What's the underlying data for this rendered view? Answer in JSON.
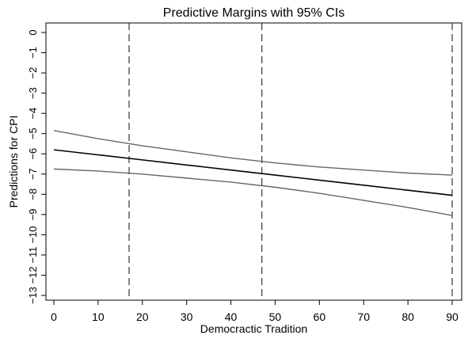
{
  "chart_data": {
    "type": "line",
    "title": "Predictive Margins with 95% CIs",
    "xlabel": "Democractic Tradition",
    "ylabel": "Predictions for CPI",
    "xlim": [
      0,
      90
    ],
    "ylim": [
      -13,
      0
    ],
    "x_ticks": [
      0,
      10,
      20,
      30,
      40,
      50,
      60,
      70,
      80,
      90
    ],
    "y_ticks": [
      0,
      -1,
      -2,
      -3,
      -4,
      -5,
      -6,
      -7,
      -8,
      -9,
      -10,
      -11,
      -12,
      -13
    ],
    "x_tick_labels": [
      "0",
      "10",
      "20",
      "30",
      "40",
      "50",
      "60",
      "70",
      "80",
      "90"
    ],
    "y_tick_labels": [
      "0",
      "−1",
      "−2",
      "−3",
      "−4",
      "−5",
      "−6",
      "−7",
      "−8",
      "−9",
      "−10",
      "−11",
      "−12",
      "−13"
    ],
    "grid": false,
    "reference_lines_x": [
      17,
      47,
      90
    ],
    "series": [
      {
        "role": "upper_ci",
        "color": "#666666",
        "x": [
          0,
          10,
          20,
          30,
          40,
          50,
          60,
          70,
          80,
          90
        ],
        "y": [
          -4.85,
          -5.25,
          -5.6,
          -5.9,
          -6.2,
          -6.45,
          -6.65,
          -6.8,
          -6.95,
          -7.05
        ]
      },
      {
        "role": "prediction",
        "color": "#000000",
        "x": [
          0,
          10,
          20,
          30,
          40,
          50,
          60,
          70,
          80,
          90
        ],
        "y": [
          -5.8,
          -6.05,
          -6.3,
          -6.55,
          -6.8,
          -7.05,
          -7.3,
          -7.55,
          -7.8,
          -8.05
        ]
      },
      {
        "role": "lower_ci",
        "color": "#666666",
        "x": [
          0,
          10,
          20,
          30,
          40,
          50,
          60,
          70,
          80,
          90
        ],
        "y": [
          -6.75,
          -6.85,
          -7.0,
          -7.2,
          -7.4,
          -7.65,
          -7.95,
          -8.3,
          -8.65,
          -9.05
        ]
      }
    ]
  }
}
